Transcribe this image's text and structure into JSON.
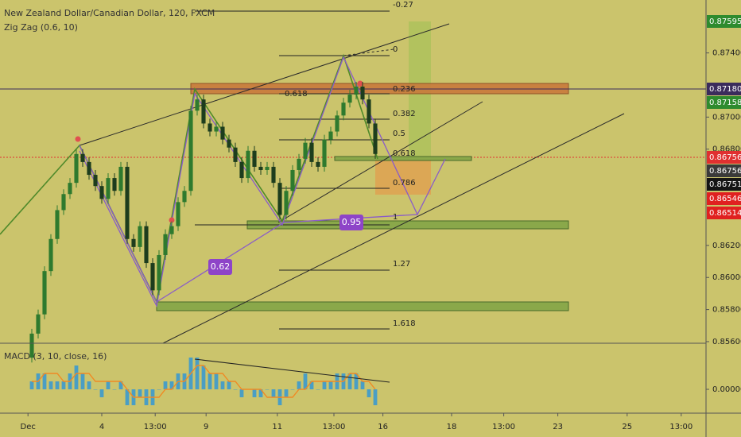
{
  "chart_data": {
    "type": "candlestick",
    "title": "New Zealand Dollar/Canadian Dollar, 120, FXCM",
    "indicator": "Zig Zag (0.6, 10)",
    "up_color": "#2e7a2e",
    "down_color": "#1d3d1d",
    "open": [
      0.855,
      0.8565,
      0.8577,
      0.8604,
      0.8624,
      0.8642,
      0.8652,
      0.8659,
      0.8677,
      0.8672,
      0.8664,
      0.8657,
      0.8649,
      0.8662,
      0.8654,
      0.8669,
      0.8624,
      0.8619,
      0.8632,
      0.8609,
      0.8592,
      0.8614,
      0.8627,
      0.8632,
      0.8647,
      0.8654,
      0.8704,
      0.8711,
      0.8696,
      0.8691,
      0.8694,
      0.8686,
      0.8681,
      0.8672,
      0.8662,
      0.8679,
      0.8669,
      0.8667,
      0.8669,
      0.8659,
      0.8639,
      0.8654,
      0.8667,
      0.8674,
      0.8684,
      0.8672,
      0.8669,
      0.8686,
      0.8691,
      0.8701,
      0.8709,
      0.8714,
      0.8719,
      0.8711,
      0.8696
    ],
    "high": [
      0.8568,
      0.858,
      0.8607,
      0.8627,
      0.8645,
      0.8655,
      0.8662,
      0.868,
      0.868,
      0.8675,
      0.8667,
      0.866,
      0.8665,
      0.8665,
      0.8672,
      0.8672,
      0.8627,
      0.8635,
      0.8635,
      0.8612,
      0.8617,
      0.863,
      0.8635,
      0.865,
      0.8657,
      0.8707,
      0.8714,
      0.8714,
      0.8699,
      0.8697,
      0.8697,
      0.8689,
      0.8684,
      0.8675,
      0.8682,
      0.8682,
      0.8672,
      0.8672,
      0.8672,
      0.8662,
      0.8657,
      0.867,
      0.8677,
      0.8687,
      0.8687,
      0.8675,
      0.8689,
      0.8694,
      0.8704,
      0.8712,
      0.8717,
      0.8722,
      0.8722,
      0.8714,
      0.8699
    ],
    "low": [
      0.8547,
      0.8562,
      0.8574,
      0.8601,
      0.8621,
      0.8639,
      0.8649,
      0.8656,
      0.8669,
      0.8661,
      0.8654,
      0.8646,
      0.8646,
      0.8651,
      0.8651,
      0.8621,
      0.8616,
      0.8616,
      0.8606,
      0.8589,
      0.8589,
      0.8611,
      0.8624,
      0.8629,
      0.8644,
      0.8651,
      0.8701,
      0.8693,
      0.8688,
      0.8688,
      0.8683,
      0.8678,
      0.8669,
      0.8659,
      0.8659,
      0.8666,
      0.8664,
      0.8664,
      0.8656,
      0.8636,
      0.8636,
      0.8651,
      0.8664,
      0.8671,
      0.8669,
      0.8666,
      0.8666,
      0.8683,
      0.8688,
      0.8698,
      0.8706,
      0.8711,
      0.8708,
      0.8693,
      0.8674
    ],
    "close": [
      0.8565,
      0.8577,
      0.8604,
      0.8624,
      0.8642,
      0.8652,
      0.8659,
      0.8677,
      0.8672,
      0.8664,
      0.8657,
      0.8649,
      0.8662,
      0.8654,
      0.8669,
      0.8624,
      0.8619,
      0.8632,
      0.8609,
      0.8592,
      0.8614,
      0.8627,
      0.8632,
      0.8647,
      0.8654,
      0.8704,
      0.8711,
      0.8696,
      0.8691,
      0.8694,
      0.8686,
      0.8681,
      0.8672,
      0.8662,
      0.8679,
      0.8669,
      0.8667,
      0.8669,
      0.8659,
      0.8639,
      0.8654,
      0.8667,
      0.8674,
      0.8684,
      0.8672,
      0.8669,
      0.8686,
      0.8691,
      0.8701,
      0.8709,
      0.8714,
      0.8719,
      0.8711,
      0.8696,
      0.8677
    ],
    "xlim": [
      -5,
      106
    ],
    "xticks": [
      {
        "value": -0.6,
        "label": "Dec"
      },
      {
        "value": 11,
        "label": "4"
      },
      {
        "value": 19.4,
        "label": "13:00"
      },
      {
        "value": 27.4,
        "label": "9"
      },
      {
        "value": 38.6,
        "label": "11"
      },
      {
        "value": 47.5,
        "label": "13:00"
      },
      {
        "value": 55.2,
        "label": "16"
      },
      {
        "value": 66,
        "label": "18"
      },
      {
        "value": 74.2,
        "label": "13:00"
      },
      {
        "value": 82.7,
        "label": "23"
      },
      {
        "value": 93.6,
        "label": "25"
      },
      {
        "value": 102.1,
        "label": "13:00"
      }
    ],
    "ylim": [
      0.8559,
      0.8773
    ],
    "yticks": [
      {
        "value": 0.874,
        "label": "0.87400"
      },
      {
        "value": 0.87,
        "label": "0.87000"
      },
      {
        "value": 0.868,
        "label": "0.86800"
      },
      {
        "value": 0.862,
        "label": "0.86200"
      },
      {
        "value": 0.86,
        "label": "0.86000"
      },
      {
        "value": 0.858,
        "label": "0.85800"
      },
      {
        "value": 0.856,
        "label": "0.85600"
      }
    ],
    "price_tags": [
      {
        "text": "0.87595",
        "color": "#2e8b2e"
      },
      {
        "text": "0.87180",
        "color": "#3b2c5c"
      },
      {
        "text": "0.87158",
        "color": "#2e8b2e"
      },
      {
        "text": "0.86756",
        "color": "#e03030"
      },
      {
        "text": "0.86756",
        "color": "#3a3a3a"
      },
      {
        "text": "0.86751",
        "color": "#151515"
      },
      {
        "text": "0.86546",
        "color": "#e02020"
      },
      {
        "text": "0.86514",
        "color": "#e02020"
      }
    ],
    "fib_levels": [
      "-0.27",
      "0",
      "0.236",
      "0.382",
      "0.5",
      "0.618",
      "0.786",
      "1",
      "1.27",
      "1.618"
    ],
    "fib_left_label": "0.618",
    "badges": [
      "0.62",
      "0.95"
    ],
    "macd": {
      "title": "MACD (3, 10, close, 16)",
      "histogram_color": "#4a9ec4",
      "signal_color": "#f08a24",
      "ylim": [
        -0.0003,
        0.00058
      ],
      "yticks": [
        {
          "value": 0,
          "label": "0.00000"
        }
      ],
      "histogram": [
        0.0001,
        0.0002,
        0.0002,
        0.0001,
        0.0001,
        0.0001,
        0.0002,
        0.0003,
        0.0002,
        0.0001,
        0,
        -0.0001,
        0.0001,
        0,
        0.0001,
        -0.0002,
        -0.0002,
        -0.0001,
        -0.0002,
        -0.0002,
        0,
        0.0001,
        0.0001,
        0.0002,
        0.0002,
        0.0004,
        0.0004,
        0.0003,
        0.0002,
        0.0002,
        0.0001,
        0.0001,
        0,
        -0.0001,
        0,
        -0.0001,
        -0.0001,
        0,
        -0.0001,
        -0.0002,
        -0.0001,
        0,
        0.0001,
        0.0002,
        0.0001,
        0,
        0.0001,
        0.0001,
        0.0002,
        0.0002,
        0.0002,
        0.0002,
        0.0001,
        -0.0001,
        -0.0002
      ],
      "signal": [
        0.0001,
        0.0001,
        0.0002,
        0.0002,
        0.0002,
        0.0001,
        0.0001,
        0.0002,
        0.0002,
        0.0002,
        0.0001,
        0.0001,
        0.0001,
        0.0001,
        0.0001,
        0,
        -0.0001,
        -0.0001,
        -0.0001,
        -0.0001,
        -0.0001,
        0,
        0,
        0.0001,
        0.0001,
        0.0002,
        0.0003,
        0.0003,
        0.0002,
        0.0002,
        0.0002,
        0.0001,
        0.0001,
        0,
        0,
        0,
        0,
        -0.0001,
        -0.0001,
        -0.0001,
        -0.0001,
        -0.0001,
        0,
        0,
        0.0001,
        0.0001,
        0.0001,
        0.0001,
        0.0001,
        0.0001,
        0.0002,
        0.0002,
        0.0001,
        0.0001,
        0
      ]
    }
  }
}
